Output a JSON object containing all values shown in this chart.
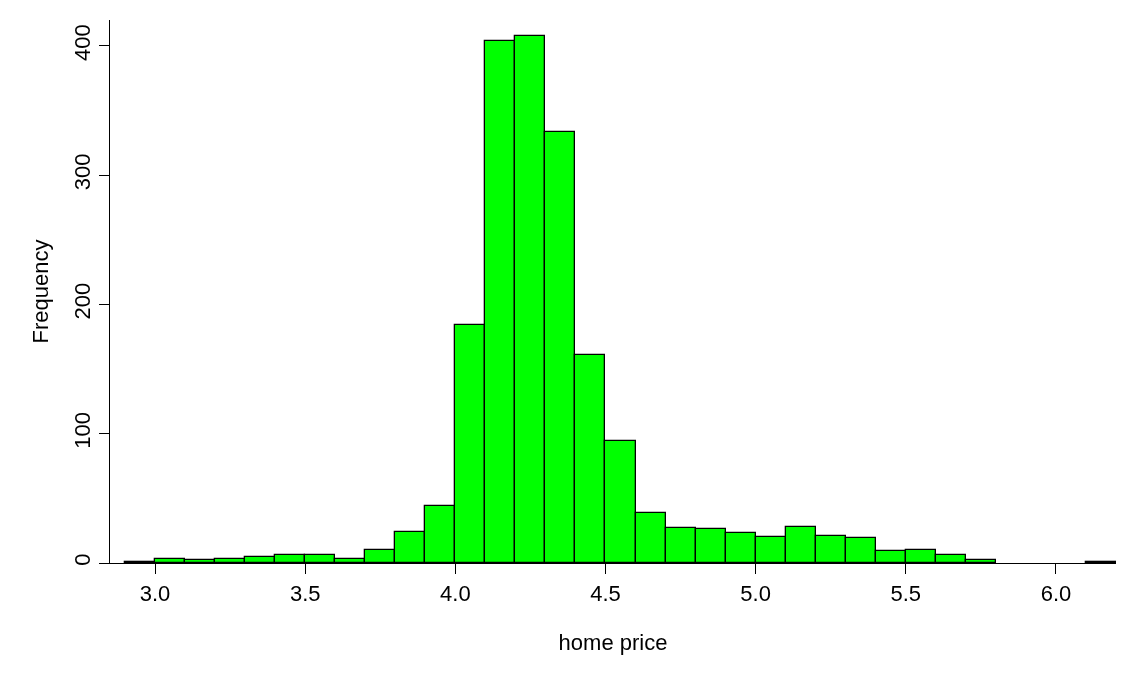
{
  "chart_data": {
    "type": "histogram",
    "xlabel": "home price",
    "ylabel": "Frequency",
    "bins": [
      2.9,
      3.0,
      3.1,
      3.2,
      3.3,
      3.4,
      3.5,
      3.6,
      3.7,
      3.8,
      3.9,
      4.0,
      4.1,
      4.2,
      4.3,
      4.4,
      4.5,
      4.6,
      4.7,
      4.8,
      4.9,
      5.0,
      5.1,
      5.2,
      5.3,
      5.4,
      5.5,
      5.6,
      5.7,
      5.8,
      5.9,
      6.0,
      6.1,
      6.2
    ],
    "values": [
      1,
      3,
      2,
      3,
      5,
      6,
      6,
      3,
      10,
      24,
      44,
      184,
      404,
      408,
      333,
      161,
      94,
      39,
      27,
      26,
      23,
      20,
      28,
      21,
      19,
      9,
      10,
      6,
      2,
      0,
      0,
      0,
      1
    ],
    "color": "#00ff00",
    "xlim": [
      2.85,
      6.2
    ],
    "ylim": [
      0,
      420
    ],
    "xticks": [
      {
        "value": 3,
        "label": "3.0"
      },
      {
        "value": 3.5,
        "label": "3.5"
      },
      {
        "value": 4,
        "label": "4.0"
      },
      {
        "value": 4.5,
        "label": "4.5"
      },
      {
        "value": 5,
        "label": "5.0"
      },
      {
        "value": 5.5,
        "label": "5.5"
      },
      {
        "value": 6,
        "label": "6.0"
      }
    ],
    "yticks": [
      0,
      100,
      200,
      300,
      400
    ]
  }
}
